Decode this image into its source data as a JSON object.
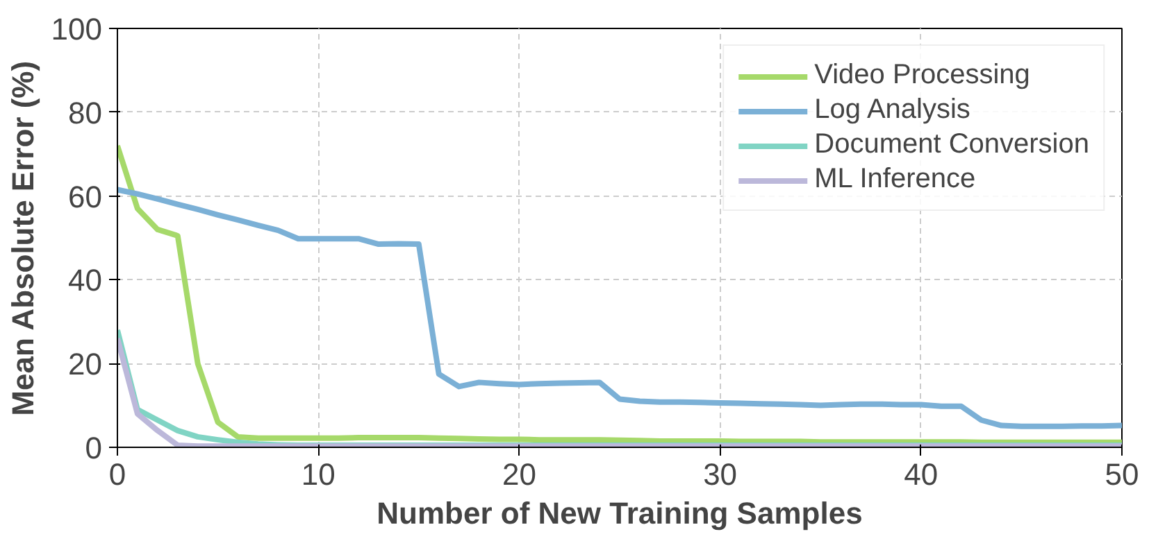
{
  "chart_data": {
    "type": "line",
    "xlabel": "Number of New Training Samples",
    "ylabel": "Mean Absolute Error (%)",
    "x": [
      0,
      1,
      2,
      3,
      4,
      5,
      6,
      7,
      8,
      9,
      10,
      11,
      12,
      13,
      14,
      15,
      16,
      17,
      18,
      19,
      20,
      21,
      22,
      23,
      24,
      25,
      26,
      27,
      28,
      29,
      30,
      31,
      32,
      33,
      34,
      35,
      36,
      37,
      38,
      39,
      40,
      41,
      42,
      43,
      44,
      45,
      46,
      47,
      48,
      49,
      50
    ],
    "series": [
      {
        "name": "Video Processing",
        "color": "#a6d96a",
        "values": [
          72,
          57,
          52,
          50.5,
          20,
          6,
          2.5,
          2.2,
          2.2,
          2.2,
          2.2,
          2.2,
          2.3,
          2.3,
          2.3,
          2.3,
          2.2,
          2.1,
          2,
          1.9,
          1.9,
          1.8,
          1.8,
          1.8,
          1.8,
          1.7,
          1.6,
          1.5,
          1.5,
          1.5,
          1.5,
          1.4,
          1.4,
          1.4,
          1.4,
          1.3,
          1.3,
          1.3,
          1.3,
          1.3,
          1.3,
          1.3,
          1.3,
          1.2,
          1.2,
          1.2,
          1.2,
          1.2,
          1.2,
          1.2,
          1.2
        ]
      },
      {
        "name": "Log Analysis",
        "color": "#7bb0d6",
        "values": [
          61.5,
          60.5,
          59.3,
          58,
          56.8,
          55.5,
          54.3,
          53,
          51.8,
          49.8,
          49.8,
          49.8,
          49.8,
          48.5,
          48.6,
          48.5,
          17.5,
          14.5,
          15.5,
          15.2,
          15,
          15.2,
          15.3,
          15.4,
          15.5,
          11.5,
          11,
          10.8,
          10.8,
          10.7,
          10.6,
          10.5,
          10.4,
          10.3,
          10.2,
          10,
          10.2,
          10.3,
          10.3,
          10.2,
          10.2,
          9.8,
          9.8,
          6.5,
          5.2,
          5,
          5,
          5,
          5.1,
          5.1,
          5.2
        ]
      },
      {
        "name": "Document Conversion",
        "color": "#80d4c4",
        "values": [
          28,
          9,
          6.5,
          4,
          2.5,
          1.8,
          1.2,
          0.8,
          0.6,
          0.5,
          0.5,
          0.5,
          0.5,
          0.5,
          0.5,
          0.5,
          0.5,
          0.5,
          0.5,
          0.5,
          0.5,
          0.5,
          0.5,
          0.5,
          0.5,
          0.5,
          0.5,
          0.5,
          0.5,
          0.5,
          0.5,
          0.5,
          0.5,
          0.5,
          0.5,
          0.5,
          0.5,
          0.5,
          0.5,
          0.5,
          0.5,
          0.5,
          0.5,
          0.5,
          0.5,
          0.5,
          0.5,
          0.5,
          0.5,
          0.5,
          0.5
        ]
      },
      {
        "name": "ML Inference",
        "color": "#bcb8da",
        "values": [
          26,
          8,
          4,
          0.5,
          0.3,
          0.3,
          0.3,
          0.3,
          0.3,
          0.3,
          0.3,
          0.3,
          0.3,
          0.3,
          0.3,
          0.3,
          0.3,
          0.3,
          0.3,
          0.3,
          0.3,
          0.3,
          0.3,
          0.3,
          0.3,
          0.3,
          0.3,
          0.3,
          0.3,
          0.3,
          0.3,
          0.3,
          0.3,
          0.3,
          0.3,
          0.3,
          0.3,
          0.3,
          0.3,
          0.3,
          0.3,
          0.3,
          0.3,
          0.3,
          0.3,
          0.3,
          0.3,
          0.3,
          0.3,
          0.3,
          0.3
        ]
      }
    ],
    "xlim": [
      0,
      50
    ],
    "ylim": [
      0,
      100
    ],
    "xticks": [
      0,
      10,
      20,
      30,
      40,
      50
    ],
    "yticks": [
      0,
      20,
      40,
      60,
      80,
      100
    ],
    "grid": true,
    "legend": "top right",
    "line_style": "solid",
    "marker": "none"
  }
}
